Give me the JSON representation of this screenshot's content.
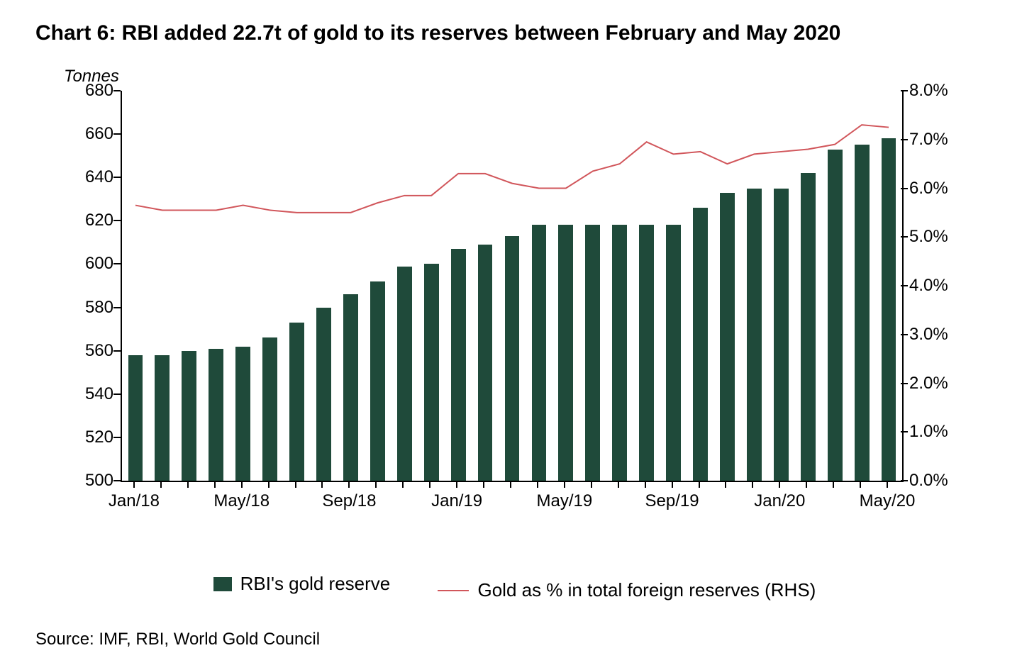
{
  "chart": {
    "title": "Chart 6: RBI added 22.7t of gold to its reserves between February and May 2020",
    "y_left_title": "Tonnes",
    "source": "Source: IMF, RBI, World Gold Council",
    "type": "bar+line",
    "background_color": "#ffffff",
    "axis_color": "#000000",
    "bar_color": "#1f4a3a",
    "line_color": "#d1565b",
    "line_width": 2,
    "bar_width_ratio": 0.55,
    "y_left": {
      "min": 500,
      "max": 680,
      "step": 20
    },
    "y_right": {
      "min": 0.0,
      "max": 8.0,
      "step": 1.0,
      "suffix": "%",
      "decimals": 1
    },
    "x_tick_interval": 4,
    "categories": [
      "Jan/18",
      "Feb/18",
      "Mar/18",
      "Apr/18",
      "May/18",
      "Jun/18",
      "Jul/18",
      "Aug/18",
      "Sep/18",
      "Oct/18",
      "Nov/18",
      "Dec/18",
      "Jan/19",
      "Feb/19",
      "Mar/19",
      "Apr/19",
      "May/19",
      "Jun/19",
      "Jul/19",
      "Aug/19",
      "Sep/19",
      "Oct/19",
      "Nov/19",
      "Dec/19",
      "Jan/20",
      "Feb/20",
      "Mar/20",
      "Apr/20",
      "May/20"
    ],
    "bars": [
      558,
      558,
      560,
      561,
      562,
      566,
      573,
      580,
      586,
      592,
      599,
      600,
      607,
      609,
      613,
      618,
      618,
      618,
      618,
      618,
      618,
      626,
      633,
      635,
      635,
      642,
      653,
      655,
      658
    ],
    "line_pct": [
      5.65,
      5.55,
      5.55,
      5.55,
      5.65,
      5.55,
      5.5,
      5.5,
      5.5,
      5.7,
      5.85,
      5.85,
      6.3,
      6.3,
      6.1,
      6.0,
      6.0,
      6.35,
      6.5,
      6.95,
      6.7,
      6.75,
      6.5,
      6.7,
      6.75,
      6.8,
      6.9,
      7.3,
      7.25
    ],
    "legend": {
      "bar_label": "RBI's gold reserve",
      "line_label": "Gold as % in total foreign reserves (RHS)"
    },
    "title_fontsize": 30,
    "axis_fontsize": 24,
    "legend_fontsize": 26
  }
}
